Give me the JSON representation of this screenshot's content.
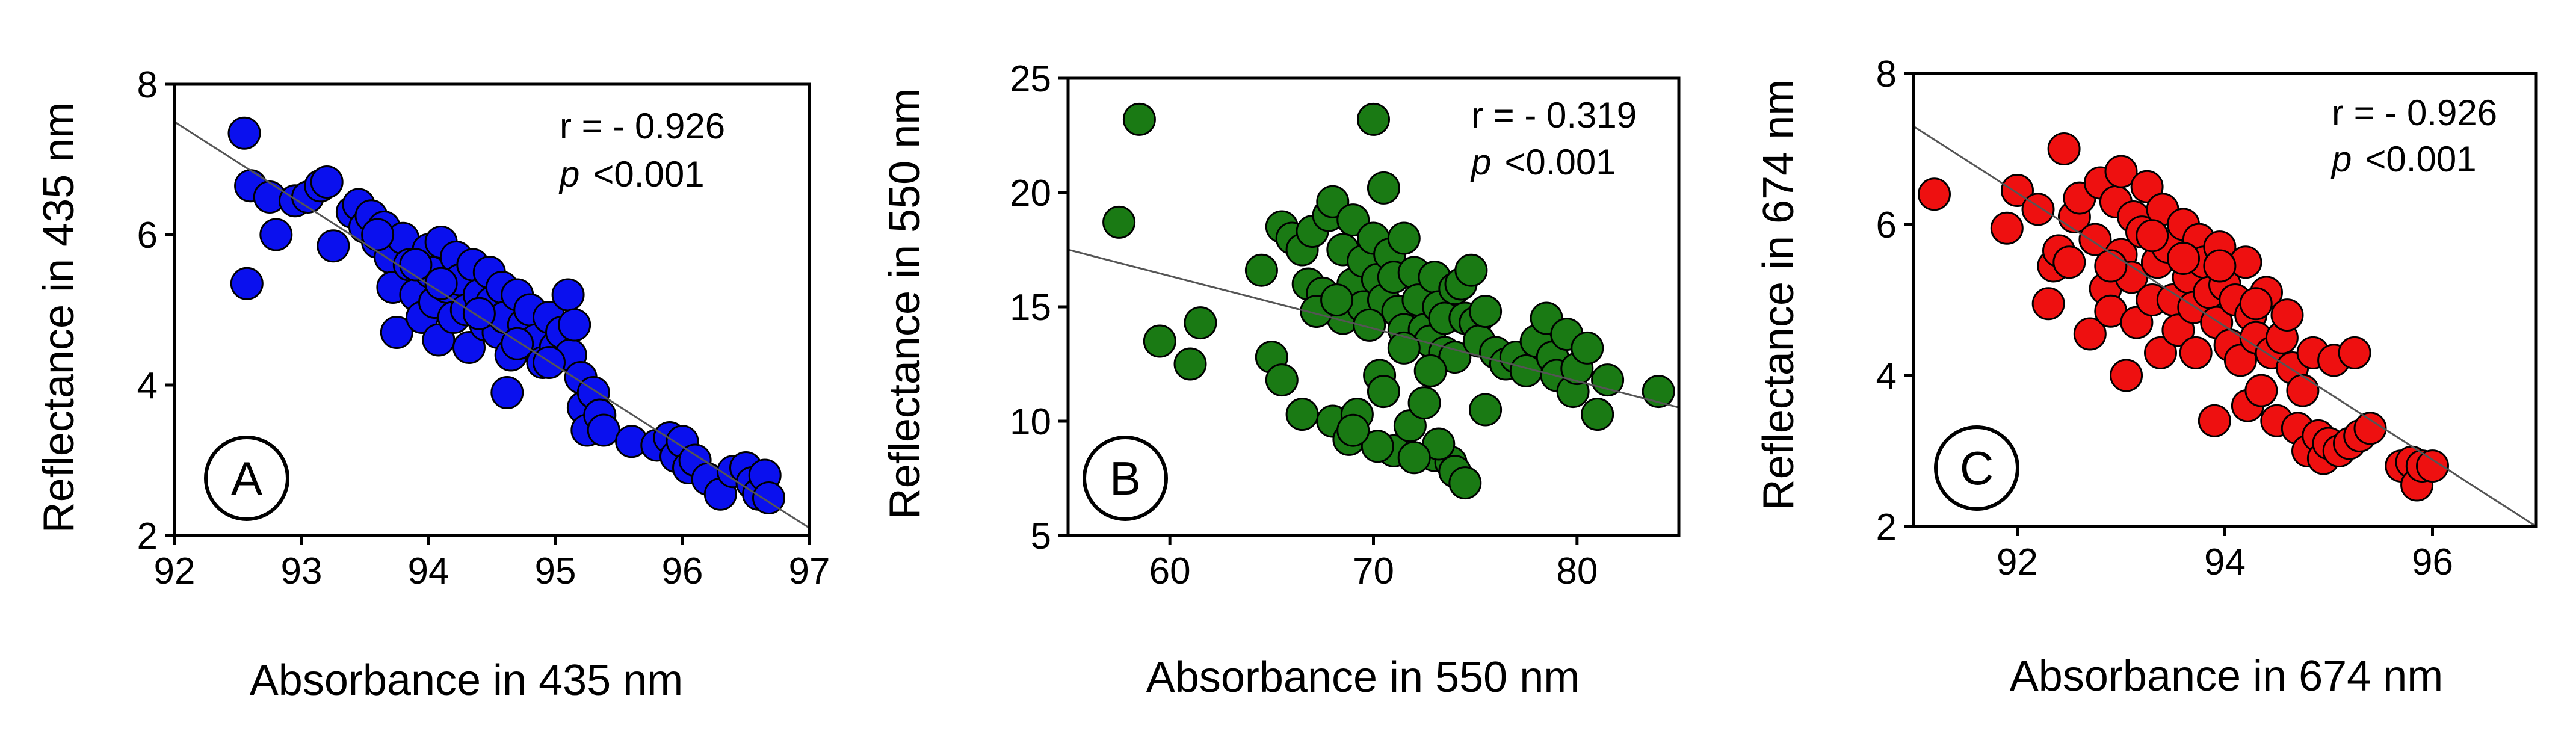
{
  "colors": {
    "A": "#0a10ee",
    "B": "#1a7a14",
    "C": "#ee1010",
    "stroke": "#000000",
    "line": "#555555"
  },
  "chart_data": [
    {
      "type": "scatter",
      "panel_label": "A",
      "xlabel": "Absorbance in 435 nm",
      "ylabel": "Reflectance in 435 nm",
      "xlim": [
        92,
        97
      ],
      "ylim": [
        2,
        8
      ],
      "xticks": [
        92,
        93,
        94,
        95,
        96,
        97
      ],
      "yticks": [
        2,
        4,
        6,
        8
      ],
      "xtick_labels": [
        "92",
        "93",
        "94",
        "95",
        "96",
        "97"
      ],
      "ytick_labels": [
        "2",
        "4",
        "6",
        "8"
      ],
      "stat_r": "r = - 0.926",
      "stat_p_sym": "p",
      "stat_p_val": "<0.001",
      "color": "#0a10ee",
      "fit_line": [
        [
          92,
          7.5
        ],
        [
          97,
          2.1
        ]
      ],
      "points": [
        [
          92.55,
          7.35
        ],
        [
          92.6,
          6.65
        ],
        [
          92.57,
          5.35
        ],
        [
          92.75,
          6.5
        ],
        [
          92.8,
          6.0
        ],
        [
          92.95,
          6.45
        ],
        [
          93.05,
          6.5
        ],
        [
          93.15,
          6.65
        ],
        [
          93.2,
          6.7
        ],
        [
          93.25,
          5.85
        ],
        [
          93.4,
          6.3
        ],
        [
          93.45,
          6.4
        ],
        [
          93.5,
          6.1
        ],
        [
          93.55,
          6.25
        ],
        [
          93.6,
          5.9
        ],
        [
          93.65,
          6.1
        ],
        [
          93.7,
          5.7
        ],
        [
          93.72,
          5.3
        ],
        [
          93.75,
          4.7
        ],
        [
          93.8,
          5.95
        ],
        [
          93.85,
          5.6
        ],
        [
          93.9,
          5.2
        ],
        [
          93.95,
          4.9
        ],
        [
          94.0,
          5.8
        ],
        [
          94.02,
          5.5
        ],
        [
          94.05,
          5.1
        ],
        [
          94.08,
          4.6
        ],
        [
          94.1,
          5.9
        ],
        [
          94.15,
          5.3
        ],
        [
          94.2,
          4.9
        ],
        [
          94.22,
          5.7
        ],
        [
          94.25,
          5.4
        ],
        [
          94.3,
          5.0
        ],
        [
          94.32,
          4.5
        ],
        [
          94.35,
          5.6
        ],
        [
          94.4,
          5.2
        ],
        [
          94.45,
          4.8
        ],
        [
          94.48,
          5.5
        ],
        [
          94.5,
          5.1
        ],
        [
          94.55,
          4.7
        ],
        [
          94.58,
          5.3
        ],
        [
          94.6,
          4.9
        ],
        [
          94.62,
          3.9
        ],
        [
          94.65,
          4.4
        ],
        [
          94.7,
          5.2
        ],
        [
          94.75,
          4.8
        ],
        [
          94.8,
          5.0
        ],
        [
          94.85,
          4.6
        ],
        [
          94.9,
          4.3
        ],
        [
          94.95,
          4.9
        ],
        [
          95.0,
          4.5
        ],
        [
          95.05,
          4.7
        ],
        [
          95.1,
          5.2
        ],
        [
          95.12,
          4.4
        ],
        [
          95.15,
          4.8
        ],
        [
          95.2,
          4.1
        ],
        [
          95.22,
          3.7
        ],
        [
          95.25,
          3.4
        ],
        [
          95.3,
          3.9
        ],
        [
          95.35,
          3.6
        ],
        [
          95.38,
          3.4
        ],
        [
          95.6,
          3.25
        ],
        [
          95.8,
          3.2
        ],
        [
          95.9,
          3.3
        ],
        [
          95.95,
          3.05
        ],
        [
          96.0,
          3.25
        ],
        [
          96.05,
          2.9
        ],
        [
          96.1,
          3.0
        ],
        [
          96.2,
          2.75
        ],
        [
          96.3,
          2.55
        ],
        [
          96.4,
          2.85
        ],
        [
          96.5,
          2.9
        ],
        [
          96.55,
          2.7
        ],
        [
          96.6,
          2.55
        ],
        [
          96.65,
          2.8
        ],
        [
          96.68,
          2.5
        ],
        [
          93.6,
          6.0
        ],
        [
          93.9,
          5.6
        ],
        [
          94.1,
          5.35
        ],
        [
          94.4,
          4.95
        ],
        [
          94.7,
          4.55
        ],
        [
          94.95,
          4.3
        ]
      ]
    },
    {
      "type": "scatter",
      "panel_label": "B",
      "xlabel": "Absorbance in 550 nm",
      "ylabel": "Reflectance in 550 nm",
      "xlim": [
        55,
        85
      ],
      "ylim": [
        5,
        25
      ],
      "xticks": [
        60,
        70,
        80
      ],
      "yticks": [
        5,
        10,
        15,
        20,
        25
      ],
      "xtick_labels": [
        "60",
        "70",
        "80"
      ],
      "ytick_labels": [
        "5",
        "10",
        "15",
        "20",
        "25"
      ],
      "stat_r": "r = - 0.319",
      "stat_p_sym": "p",
      "stat_p_val": "<0.001",
      "color": "#1a7a14",
      "fit_line": [
        [
          55,
          17.5
        ],
        [
          85,
          10.6
        ]
      ],
      "points": [
        [
          57.5,
          18.7
        ],
        [
          58.5,
          23.2
        ],
        [
          59.5,
          13.5
        ],
        [
          61.0,
          12.5
        ],
        [
          61.5,
          14.3
        ],
        [
          64.5,
          16.6
        ],
        [
          65.0,
          12.8
        ],
        [
          65.5,
          11.8
        ],
        [
          65.5,
          18.5
        ],
        [
          66.0,
          18.0
        ],
        [
          66.5,
          10.3
        ],
        [
          66.5,
          17.5
        ],
        [
          66.8,
          16.0
        ],
        [
          67.0,
          18.3
        ],
        [
          67.5,
          15.6
        ],
        [
          67.8,
          19.0
        ],
        [
          68.0,
          19.6
        ],
        [
          68.0,
          10.0
        ],
        [
          68.5,
          17.5
        ],
        [
          68.5,
          14.5
        ],
        [
          68.8,
          9.2
        ],
        [
          69.0,
          16.0
        ],
        [
          69.0,
          18.8
        ],
        [
          69.2,
          10.3
        ],
        [
          69.5,
          17.0
        ],
        [
          69.5,
          15.0
        ],
        [
          70.0,
          23.2
        ],
        [
          70.0,
          18.0
        ],
        [
          70.2,
          16.2
        ],
        [
          70.3,
          12.0
        ],
        [
          70.5,
          20.2
        ],
        [
          70.5,
          15.3
        ],
        [
          70.5,
          11.3
        ],
        [
          70.8,
          17.3
        ],
        [
          71.0,
          16.3
        ],
        [
          71.0,
          8.7
        ],
        [
          71.2,
          14.8
        ],
        [
          71.5,
          18.0
        ],
        [
          71.5,
          14.0
        ],
        [
          71.8,
          9.8
        ],
        [
          72.0,
          16.5
        ],
        [
          72.2,
          15.3
        ],
        [
          72.5,
          14.0
        ],
        [
          72.5,
          10.8
        ],
        [
          72.8,
          13.5
        ],
        [
          73.0,
          8.5
        ],
        [
          73.0,
          16.3
        ],
        [
          73.2,
          15.0
        ],
        [
          73.5,
          14.5
        ],
        [
          73.5,
          13.0
        ],
        [
          73.8,
          8.2
        ],
        [
          74.0,
          15.8
        ],
        [
          74.0,
          12.8
        ],
        [
          74.0,
          7.8
        ],
        [
          74.3,
          16.0
        ],
        [
          74.5,
          14.5
        ],
        [
          74.5,
          7.3
        ],
        [
          74.8,
          16.6
        ],
        [
          75.0,
          14.3
        ],
        [
          75.2,
          13.5
        ],
        [
          75.5,
          10.5
        ],
        [
          75.5,
          14.8
        ],
        [
          76.0,
          13.0
        ],
        [
          76.5,
          12.5
        ],
        [
          77.0,
          12.8
        ],
        [
          77.5,
          12.2
        ],
        [
          78.0,
          13.5
        ],
        [
          78.5,
          14.5
        ],
        [
          78.8,
          12.8
        ],
        [
          79.0,
          12.0
        ],
        [
          79.5,
          13.8
        ],
        [
          79.8,
          11.3
        ],
        [
          80.0,
          12.3
        ],
        [
          80.5,
          13.2
        ],
        [
          81.0,
          10.3
        ],
        [
          81.5,
          11.8
        ],
        [
          84.0,
          11.3
        ],
        [
          67.2,
          14.8
        ],
        [
          68.2,
          15.3
        ],
        [
          69.8,
          14.2
        ],
        [
          71.5,
          13.2
        ],
        [
          72.8,
          12.2
        ],
        [
          73.2,
          9.0
        ],
        [
          70.2,
          8.9
        ],
        [
          69.0,
          9.6
        ],
        [
          72.0,
          8.4
        ]
      ]
    },
    {
      "type": "scatter",
      "panel_label": "C",
      "xlabel": "Absorbance in 674 nm",
      "ylabel": "Reflectance in 674 nm",
      "xlim": [
        91,
        97
      ],
      "ylim": [
        2,
        8
      ],
      "xticks": [
        92,
        94,
        96
      ],
      "yticks": [
        2,
        4,
        6,
        8
      ],
      "xtick_labels": [
        "92",
        "94",
        "96"
      ],
      "ytick_labels": [
        "2",
        "4",
        "6",
        "8"
      ],
      "stat_r": "r = - 0.926",
      "stat_p_sym": "p",
      "stat_p_val": "<0.001",
      "color": "#ee1010",
      "fit_line": [
        [
          91,
          7.3
        ],
        [
          97,
          2.0
        ]
      ],
      "points": [
        [
          91.2,
          6.4
        ],
        [
          91.9,
          5.95
        ],
        [
          92.0,
          6.45
        ],
        [
          92.2,
          6.2
        ],
        [
          92.3,
          4.95
        ],
        [
          92.35,
          5.45
        ],
        [
          92.4,
          5.65
        ],
        [
          92.45,
          7.0
        ],
        [
          92.5,
          5.5
        ],
        [
          92.55,
          6.1
        ],
        [
          92.6,
          6.35
        ],
        [
          92.7,
          4.55
        ],
        [
          92.75,
          5.8
        ],
        [
          92.8,
          6.55
        ],
        [
          92.85,
          5.15
        ],
        [
          92.9,
          4.85
        ],
        [
          92.95,
          6.3
        ],
        [
          93.0,
          6.7
        ],
        [
          93.0,
          5.6
        ],
        [
          93.05,
          4.0
        ],
        [
          93.1,
          5.3
        ],
        [
          93.12,
          6.1
        ],
        [
          93.15,
          4.7
        ],
        [
          93.2,
          5.9
        ],
        [
          93.25,
          6.5
        ],
        [
          93.3,
          5.0
        ],
        [
          93.35,
          5.5
        ],
        [
          93.38,
          4.3
        ],
        [
          93.4,
          6.2
        ],
        [
          93.45,
          5.7
        ],
        [
          93.5,
          5.0
        ],
        [
          93.55,
          4.6
        ],
        [
          93.6,
          6.0
        ],
        [
          93.65,
          5.3
        ],
        [
          93.7,
          4.9
        ],
        [
          93.72,
          4.3
        ],
        [
          93.75,
          5.8
        ],
        [
          93.8,
          5.5
        ],
        [
          93.85,
          5.1
        ],
        [
          93.9,
          3.4
        ],
        [
          93.92,
          4.7
        ],
        [
          93.95,
          5.7
        ],
        [
          94.0,
          5.2
        ],
        [
          94.05,
          4.4
        ],
        [
          94.1,
          5.0
        ],
        [
          94.15,
          4.2
        ],
        [
          94.2,
          5.5
        ],
        [
          94.22,
          3.6
        ],
        [
          94.25,
          4.8
        ],
        [
          94.3,
          4.5
        ],
        [
          94.35,
          3.8
        ],
        [
          94.4,
          5.1
        ],
        [
          94.45,
          4.3
        ],
        [
          94.5,
          3.4
        ],
        [
          94.55,
          4.5
        ],
        [
          94.6,
          4.8
        ],
        [
          94.65,
          4.1
        ],
        [
          94.7,
          3.3
        ],
        [
          94.75,
          3.8
        ],
        [
          94.8,
          3.0
        ],
        [
          94.85,
          4.3
        ],
        [
          94.9,
          3.2
        ],
        [
          94.95,
          2.9
        ],
        [
          95.0,
          3.1
        ],
        [
          95.05,
          4.2
        ],
        [
          95.1,
          3.0
        ],
        [
          95.2,
          3.1
        ],
        [
          95.25,
          4.3
        ],
        [
          95.3,
          3.2
        ],
        [
          95.4,
          3.3
        ],
        [
          95.7,
          2.8
        ],
        [
          95.8,
          2.85
        ],
        [
          95.85,
          2.55
        ],
        [
          95.9,
          2.8
        ],
        [
          96.0,
          2.8
        ],
        [
          93.3,
          5.85
        ],
        [
          93.6,
          5.55
        ],
        [
          93.95,
          5.45
        ],
        [
          94.3,
          4.95
        ],
        [
          92.9,
          5.45
        ]
      ]
    }
  ]
}
